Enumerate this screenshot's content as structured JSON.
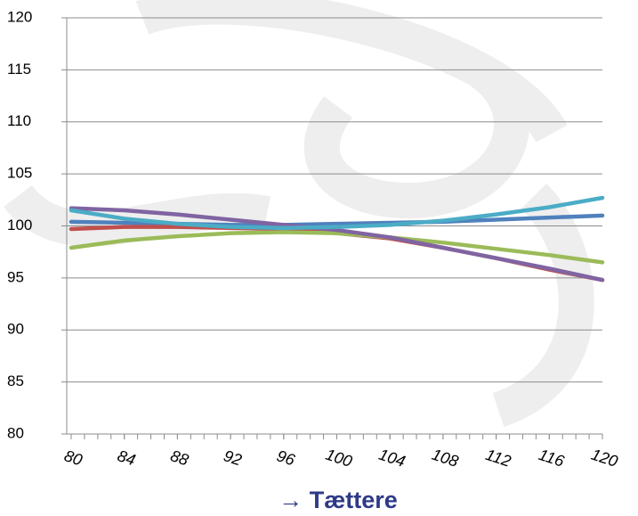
{
  "chart_data": {
    "type": "line",
    "x_label": "→ Tættere",
    "x": [
      80,
      84,
      88,
      92,
      96,
      100,
      104,
      108,
      112,
      116,
      120
    ],
    "series": [
      {
        "color": "#4f81bd",
        "values": [
          100.4,
          100.3,
          100.2,
          100.1,
          100.1,
          100.2,
          100.3,
          100.4,
          100.6,
          100.8,
          101.0
        ]
      },
      {
        "color": "#c0504d",
        "values": [
          99.7,
          99.9,
          99.9,
          99.8,
          99.7,
          99.3,
          98.8,
          97.9,
          96.9,
          95.8,
          94.8
        ]
      },
      {
        "color": "#9bbb59",
        "values": [
          97.9,
          98.6,
          99.0,
          99.3,
          99.4,
          99.3,
          98.9,
          98.4,
          97.8,
          97.2,
          96.5
        ]
      },
      {
        "color": "#8064a2",
        "values": [
          101.7,
          101.5,
          101.1,
          100.6,
          100.1,
          99.6,
          98.9,
          97.9,
          96.9,
          95.9,
          94.8
        ]
      },
      {
        "color": "#4bacc6",
        "values": [
          101.5,
          100.7,
          100.2,
          99.9,
          99.8,
          99.9,
          100.1,
          100.5,
          101.1,
          101.8,
          102.7
        ]
      }
    ],
    "xlim": [
      80,
      120
    ],
    "xticks": [
      80,
      84,
      88,
      92,
      96,
      100,
      104,
      108,
      112,
      116,
      120
    ],
    "ylim": [
      80,
      120
    ],
    "yticks": [
      80,
      85,
      90,
      95,
      100,
      105,
      110,
      115,
      120
    ],
    "grid": true
  }
}
